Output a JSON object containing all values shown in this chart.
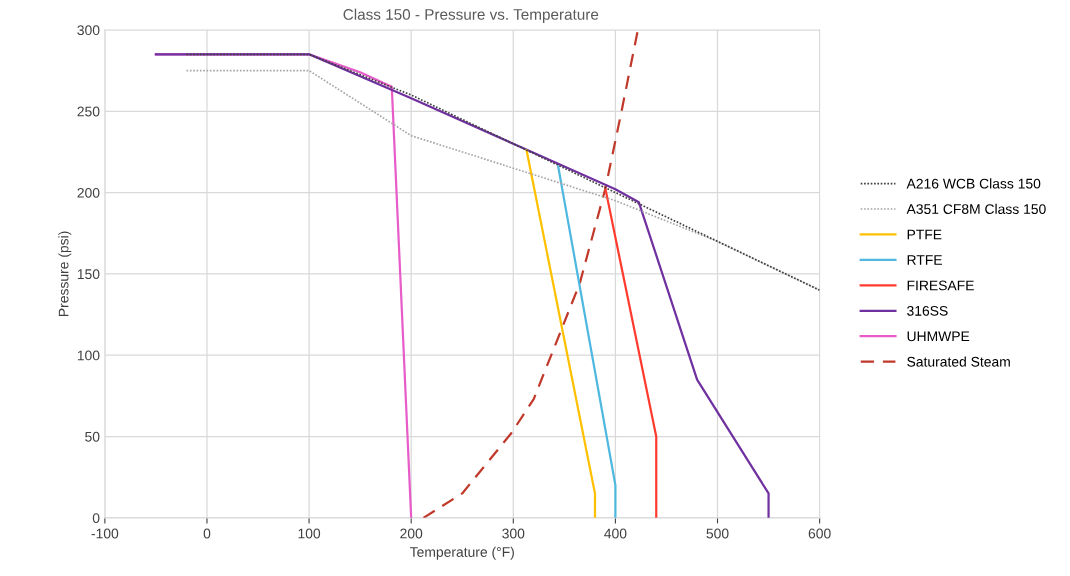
{
  "chart_data": {
    "type": "line",
    "title": "Class 150 - Pressure vs. Temperature",
    "xlabel": "Temperature (°F)",
    "ylabel": "Pressure (psi)",
    "xlim": [
      -100,
      600
    ],
    "xticks": [
      -100,
      0,
      100,
      200,
      300,
      400,
      500,
      600
    ],
    "ylim": [
      0,
      300
    ],
    "yticks": [
      0,
      50,
      100,
      150,
      200,
      250,
      300
    ],
    "grid": true,
    "legend": "right",
    "marker": "none",
    "series": [
      {
        "name": "A216 WCB Class 150",
        "color": "#404040",
        "line_style": "dotted",
        "x": [
          -20,
          100,
          200,
          300,
          400,
          500,
          600
        ],
        "values": [
          285,
          285,
          260,
          230,
          200,
          170,
          140
        ]
      },
      {
        "name": "A351 CF8M Class 150",
        "color": "#a6a6a6",
        "line_style": "dotted",
        "x": [
          -20,
          100,
          200,
          300,
          400,
          500,
          600
        ],
        "values": [
          275,
          275,
          235,
          215,
          195,
          170,
          140
        ]
      },
      {
        "name": "PTFE",
        "color": "#ffc000",
        "line_style": "solid",
        "x": [
          313,
          380,
          380
        ],
        "values": [
          226,
          15,
          0
        ]
      },
      {
        "name": "RTFE",
        "color": "#4fb8e0",
        "line_style": "solid",
        "x": [
          344,
          350,
          400,
          400
        ],
        "values": [
          216,
          195,
          20,
          0
        ]
      },
      {
        "name": "FIRESAFE",
        "color": "#ff3b2f",
        "line_style": "solid",
        "x": [
          390,
          440,
          440
        ],
        "values": [
          203,
          50,
          0
        ]
      },
      {
        "name": "316SS",
        "color": "#7030a0",
        "line_style": "solid",
        "x": [
          -50,
          100,
          200,
          300,
          400,
          423,
          480,
          550,
          550
        ],
        "values": [
          285,
          285,
          258,
          230,
          202,
          194,
          85,
          15,
          0
        ]
      },
      {
        "name": "UHMWPE",
        "color": "#e75cc8",
        "line_style": "solid",
        "x": [
          -50,
          100,
          150,
          181,
          200
        ],
        "values": [
          285,
          285,
          274,
          265,
          0
        ]
      },
      {
        "name": "Saturated Steam",
        "color": "#c0392b",
        "line_style": "dashed",
        "x": [
          212,
          250,
          298,
          320,
          346,
          365,
          390,
          406,
          422
        ],
        "values": [
          0,
          15,
          52,
          73,
          114,
          144,
          202,
          250,
          300
        ]
      }
    ]
  }
}
